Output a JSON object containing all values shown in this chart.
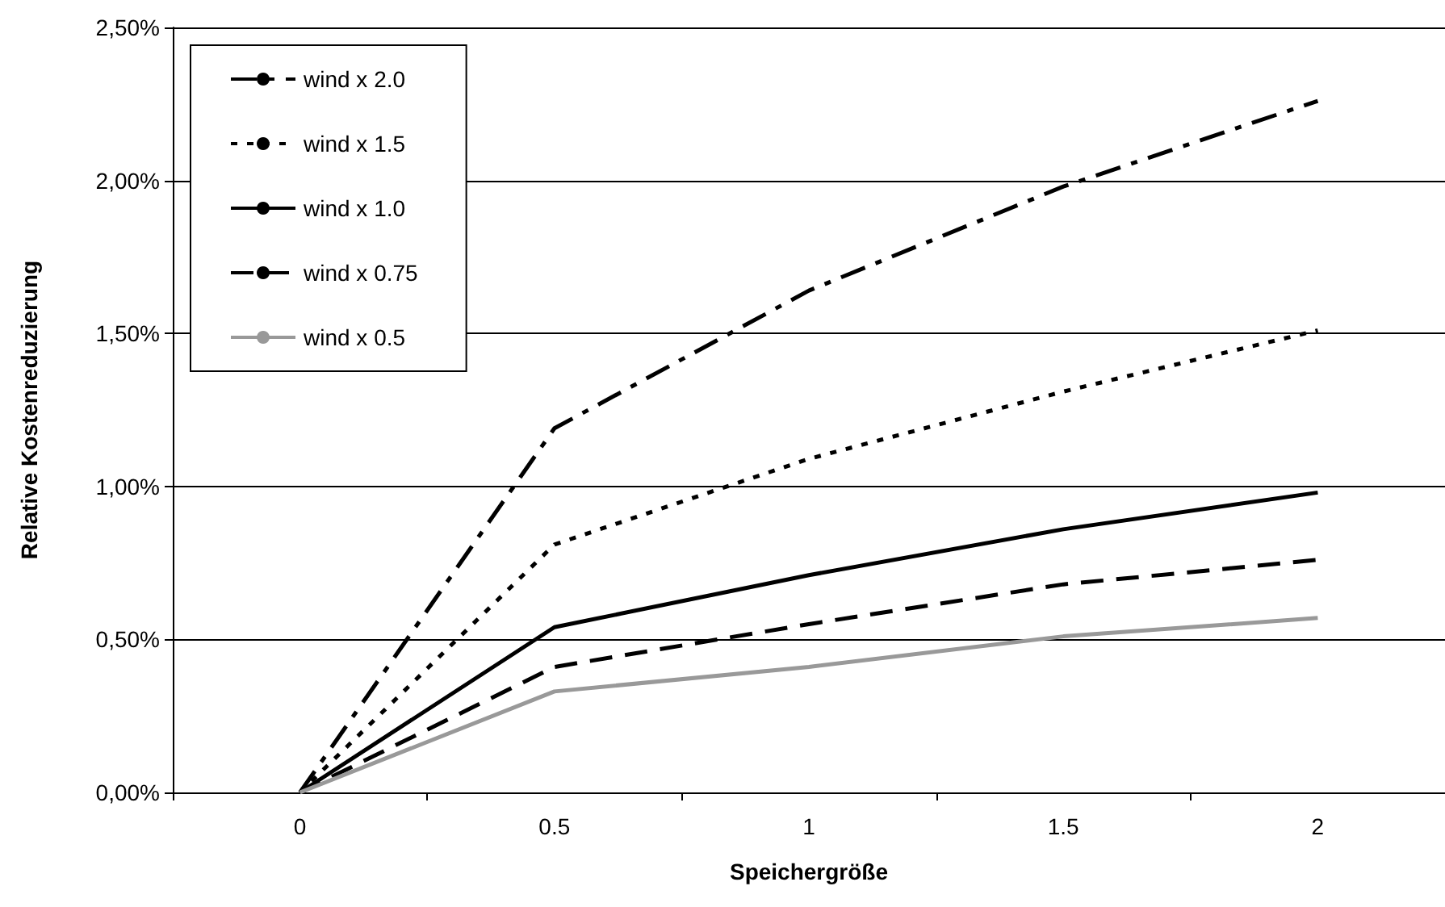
{
  "chart_data": {
    "type": "line",
    "xlabel": "Speichergröße",
    "ylabel": "Relative Kostenreduzierung",
    "categories": [
      "0",
      "0.5",
      "1",
      "1.5",
      "2"
    ],
    "series": [
      {
        "name": "wind x 2.0",
        "color": "#000000",
        "line_style": "dashdot",
        "values": [
          0,
          1.19,
          1.64,
          1.98,
          2.26
        ]
      },
      {
        "name": "wind x 1.5",
        "color": "#000000",
        "line_style": "dotted",
        "values": [
          0,
          0.81,
          1.09,
          1.31,
          1.51
        ]
      },
      {
        "name": "wind x 1.0",
        "color": "#000000",
        "line_style": "solid",
        "values": [
          0,
          0.54,
          0.71,
          0.86,
          0.98
        ]
      },
      {
        "name": "wind x 0.75",
        "color": "#000000",
        "line_style": "dashed",
        "values": [
          0,
          0.41,
          0.55,
          0.68,
          0.76
        ]
      },
      {
        "name": "wind x 0.5",
        "color": "#999999",
        "line_style": "solid",
        "values": [
          0,
          0.33,
          0.41,
          0.51,
          0.57
        ]
      }
    ],
    "ylim": [
      0,
      2.5
    ],
    "yticks": [
      {
        "value": 0,
        "label": "0,00%"
      },
      {
        "value": 0.5,
        "label": "0,50%"
      },
      {
        "value": 1,
        "label": "1,00%"
      },
      {
        "value": 1.5,
        "label": "1,50%"
      },
      {
        "value": 2,
        "label": "2,00%"
      },
      {
        "value": 2.5,
        "label": "2,50%"
      }
    ],
    "grid": "y",
    "legend": "top left",
    "marker": "none"
  }
}
